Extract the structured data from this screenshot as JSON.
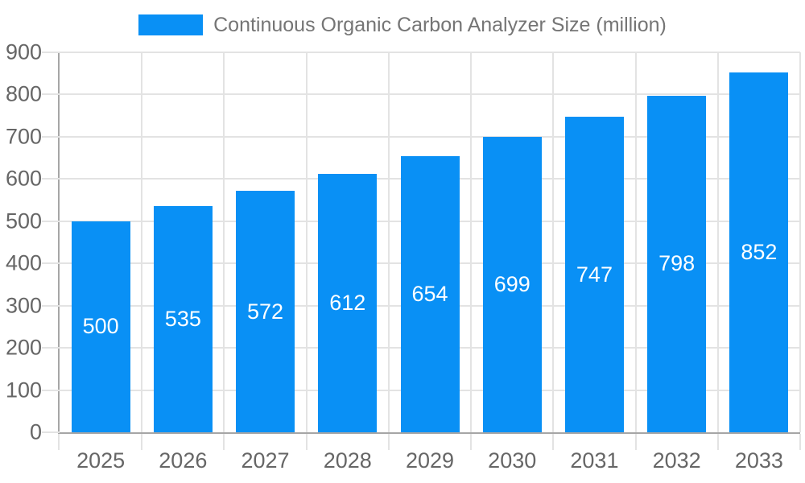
{
  "chart_data": {
    "type": "bar",
    "title": "Continuous Organic Carbon Analyzer Size (million)",
    "legend_position": "top",
    "categories": [
      "2025",
      "2026",
      "2027",
      "2028",
      "2029",
      "2030",
      "2031",
      "2032",
      "2033"
    ],
    "series": [
      {
        "name": "Continuous Organic Carbon Analyzer Size (million)",
        "values": [
          500,
          535,
          572,
          612,
          654,
          699,
          747,
          798,
          852
        ]
      }
    ],
    "bar_value_labels": [
      "500",
      "535",
      "572",
      "612",
      "654",
      "699",
      "747",
      "798",
      "852"
    ],
    "xlabel": "",
    "ylabel": "",
    "ylim": [
      0,
      900
    ],
    "ytick_step": 100,
    "ytick_labels": [
      "0",
      "100",
      "200",
      "300",
      "400",
      "500",
      "600",
      "700",
      "800",
      "900"
    ],
    "grid": true,
    "value_labels_visible": true,
    "value_label_position": "inside-center"
  },
  "style": {
    "bar_color": "#0990F5",
    "bar_label_color": "#FFFFFF",
    "grid_color": "#E3E3E3",
    "axis_color": "#A6A6A6",
    "tick_label_color": "#666666",
    "legend_text_color": "#757575",
    "background_color": "#FFFFFF"
  }
}
